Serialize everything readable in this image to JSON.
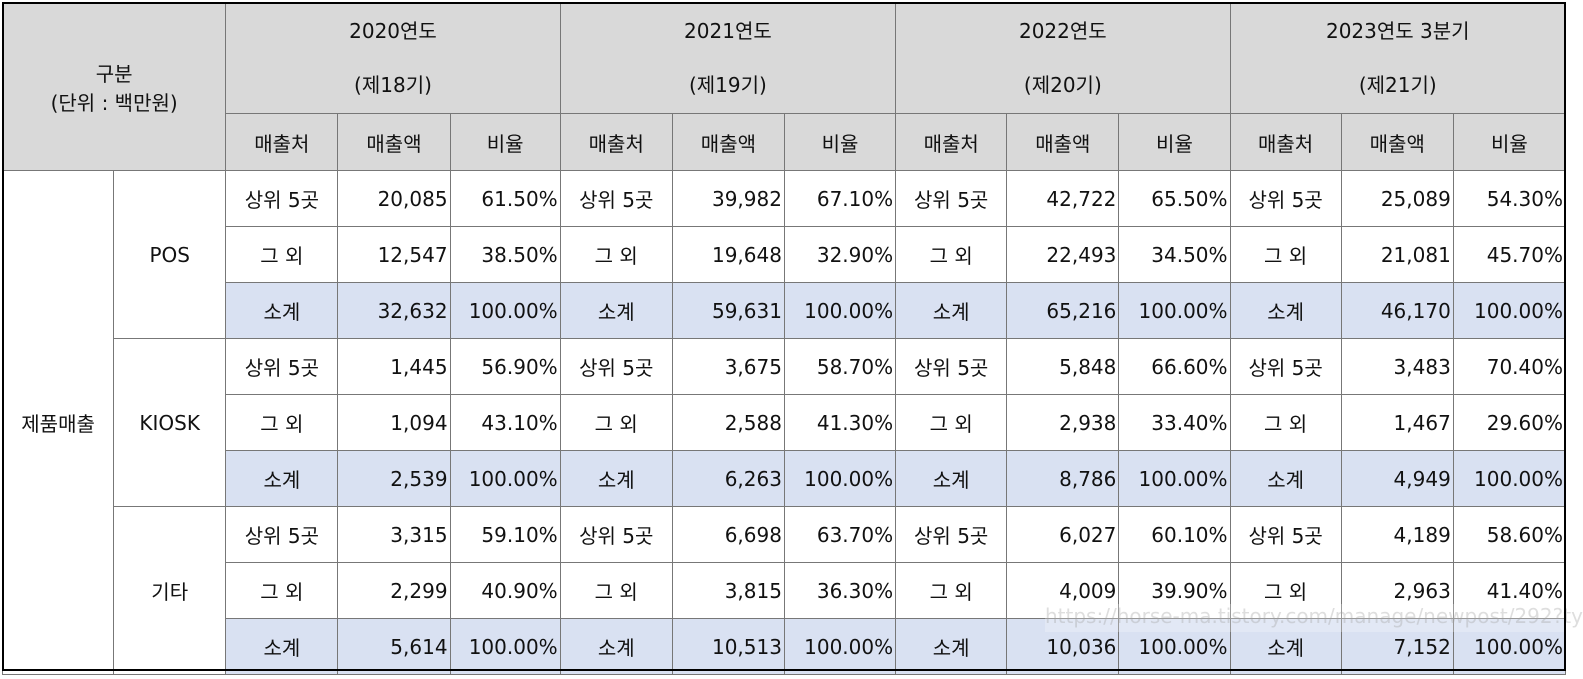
{
  "header": {
    "category": "구분",
    "unit": "(단위 : 백만원)",
    "years": [
      {
        "year": "2020연도",
        "term": "(제18기)"
      },
      {
        "year": "2021연도",
        "term": "(제19기)"
      },
      {
        "year": "2022연도",
        "term": "(제20기)"
      },
      {
        "year": "2023연도 3분기",
        "term": "(제21기)"
      }
    ],
    "cols": {
      "customer": "매출처",
      "sales": "매출액",
      "ratio": "비율"
    }
  },
  "main_category": "제품매출",
  "groups": [
    {
      "name": "POS",
      "rows": [
        {
          "label": "상위 5곳",
          "cells": [
            [
              "20,085",
              "61.50%"
            ],
            [
              "39,982",
              "67.10%"
            ],
            [
              "42,722",
              "65.50%"
            ],
            [
              "25,089",
              "54.30%"
            ]
          ]
        },
        {
          "label": "그 외",
          "cells": [
            [
              "12,547",
              "38.50%"
            ],
            [
              "19,648",
              "32.90%"
            ],
            [
              "22,493",
              "34.50%"
            ],
            [
              "21,081",
              "45.70%"
            ]
          ]
        },
        {
          "label": "소계",
          "cells": [
            [
              "32,632",
              "100.00%"
            ],
            [
              "59,631",
              "100.00%"
            ],
            [
              "65,216",
              "100.00%"
            ],
            [
              "46,170",
              "100.00%"
            ]
          ]
        }
      ]
    },
    {
      "name": "KIOSK",
      "rows": [
        {
          "label": "상위 5곳",
          "cells": [
            [
              "1,445",
              "56.90%"
            ],
            [
              "3,675",
              "58.70%"
            ],
            [
              "5,848",
              "66.60%"
            ],
            [
              "3,483",
              "70.40%"
            ]
          ]
        },
        {
          "label": "그 외",
          "cells": [
            [
              "1,094",
              "43.10%"
            ],
            [
              "2,588",
              "41.30%"
            ],
            [
              "2,938",
              "33.40%"
            ],
            [
              "1,467",
              "29.60%"
            ]
          ]
        },
        {
          "label": "소계",
          "cells": [
            [
              "2,539",
              "100.00%"
            ],
            [
              "6,263",
              "100.00%"
            ],
            [
              "8,786",
              "100.00%"
            ],
            [
              "4,949",
              "100.00%"
            ]
          ]
        }
      ]
    },
    {
      "name": "기타",
      "rows": [
        {
          "label": "상위 5곳",
          "cells": [
            [
              "3,315",
              "59.10%"
            ],
            [
              "6,698",
              "63.70%"
            ],
            [
              "6,027",
              "60.10%"
            ],
            [
              "4,189",
              "58.60%"
            ]
          ]
        },
        {
          "label": "그 외",
          "cells": [
            [
              "2,299",
              "40.90%"
            ],
            [
              "3,815",
              "36.30%"
            ],
            [
              "4,009",
              "39.90%"
            ],
            [
              "2,963",
              "41.40%"
            ]
          ]
        },
        {
          "label": "소계",
          "cells": [
            [
              "5,614",
              "100.00%"
            ],
            [
              "10,513",
              "100.00%"
            ],
            [
              "10,036",
              "100.00%"
            ],
            [
              "7,152",
              "100.00%"
            ]
          ]
        }
      ]
    }
  ],
  "watermark": "https://horse-ma.tistory.com/manage/newpost/292?ty"
}
